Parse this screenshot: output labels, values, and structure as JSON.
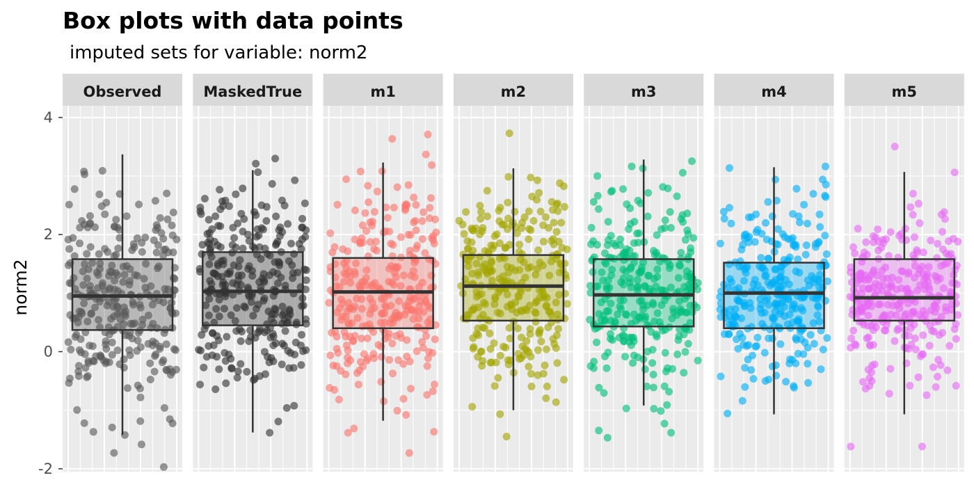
{
  "chart_data": {
    "type": "scatter",
    "subtype": "faceted-boxplot-with-jittered-points",
    "title": "Box plots with data points",
    "subtitle": "imputed sets for variable:  norm2",
    "ylabel": "norm2",
    "xlabel": "",
    "ylim": [
      -2.05,
      4.2
    ],
    "yticks": [
      {
        "value": 4,
        "label": "4"
      },
      {
        "value": 2,
        "label": "2"
      },
      {
        "value": 0,
        "label": "0"
      },
      {
        "value": -2,
        "label": "-2"
      }
    ],
    "grid": true,
    "points_per_panel": 300,
    "facets": [
      {
        "label": "Observed",
        "color": "#595959",
        "box": {
          "q1": 0.37,
          "median": 0.95,
          "q3": 1.58,
          "whisker_low": -1.42,
          "whisker_high": 3.37
        }
      },
      {
        "label": "MaskedTrue",
        "color": "#333333",
        "box": {
          "q1": 0.45,
          "median": 1.03,
          "q3": 1.7,
          "whisker_low": -1.38,
          "whisker_high": 3.1
        }
      },
      {
        "label": "m1",
        "color": "#F8766D",
        "box": {
          "q1": 0.4,
          "median": 1.02,
          "q3": 1.6,
          "whisker_low": -1.18,
          "whisker_high": 3.23
        }
      },
      {
        "label": "m2",
        "color": "#A3A500",
        "box": {
          "q1": 0.53,
          "median": 1.12,
          "q3": 1.65,
          "whisker_low": -1.0,
          "whisker_high": 3.13
        }
      },
      {
        "label": "m3",
        "color": "#00BF7D",
        "box": {
          "q1": 0.43,
          "median": 0.97,
          "q3": 1.58,
          "whisker_low": -0.92,
          "whisker_high": 3.28
        }
      },
      {
        "label": "m4",
        "color": "#00B0F6",
        "box": {
          "q1": 0.4,
          "median": 1.0,
          "q3": 1.52,
          "whisker_low": -1.07,
          "whisker_high": 3.15
        }
      },
      {
        "label": "m5",
        "color": "#E76BF3",
        "box": {
          "q1": 0.53,
          "median": 0.92,
          "q3": 1.58,
          "whisker_low": -1.07,
          "whisker_high": 3.07
        }
      }
    ]
  }
}
